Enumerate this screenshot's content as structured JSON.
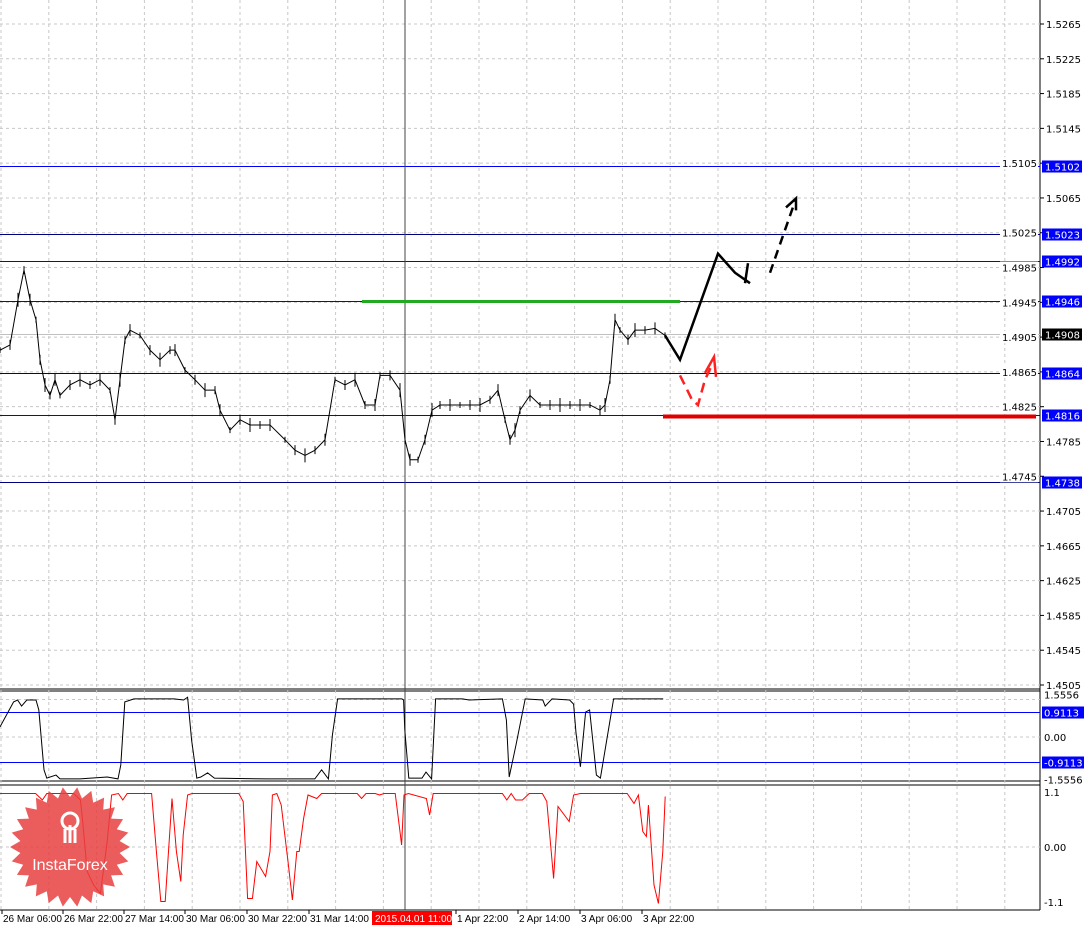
{
  "chart_data": [
    {
      "type": "line",
      "panel": "price",
      "ylim": [
        1.448,
        1.529
      ],
      "y_ticks": [
        "1.5265",
        "1.5225",
        "1.5185",
        "1.5145",
        "1.5105",
        "1.5065",
        "1.5025",
        "1.4985",
        "1.4945",
        "1.4905",
        "1.4865",
        "1.4825",
        "1.4785",
        "1.4745",
        "1.4705",
        "1.4665",
        "1.4625",
        "1.4585",
        "1.4545",
        "1.4505"
      ],
      "grid": true,
      "series": [
        {
          "values": [
            [
              0,
              1.489
            ],
            [
              2.5,
              1.4896
            ],
            [
              4.5,
              1.4948
            ],
            [
              6,
              1.4982
            ],
            [
              7.5,
              1.4948
            ],
            [
              9,
              1.4925
            ],
            [
              10,
              1.4879
            ],
            [
              11.25,
              1.485
            ],
            [
              12.5,
              1.4838
            ],
            [
              13.75,
              1.4856
            ],
            [
              15,
              1.4838
            ],
            [
              17.5,
              1.485
            ],
            [
              20,
              1.4856
            ],
            [
              22.5,
              1.485
            ],
            [
              25,
              1.4856
            ],
            [
              27.5,
              1.4844
            ],
            [
              28.75,
              1.481
            ],
            [
              30,
              1.4856
            ],
            [
              31.25,
              1.4902
            ],
            [
              32.5,
              1.4913
            ],
            [
              35,
              1.4907
            ],
            [
              37.5,
              1.489
            ],
            [
              40,
              1.4879
            ],
            [
              42.5,
              1.489
            ],
            [
              43.75,
              1.489
            ],
            [
              46.25,
              1.4867
            ],
            [
              48.75,
              1.4856
            ],
            [
              51.25,
              1.4844
            ],
            [
              53.75,
              1.4844
            ],
            [
              55,
              1.4821
            ],
            [
              57.5,
              1.4798
            ],
            [
              60,
              1.481
            ],
            [
              62.5,
              1.4804
            ],
            [
              65,
              1.4804
            ],
            [
              67.5,
              1.4804
            ],
            [
              71.25,
              1.4787
            ],
            [
              73.75,
              1.4775
            ],
            [
              76.25,
              1.4769
            ],
            [
              78.75,
              1.4775
            ],
            [
              81.25,
              1.4787
            ],
            [
              83.75,
              1.4856
            ],
            [
              86.25,
              1.485
            ],
            [
              88.75,
              1.4856
            ],
            [
              91.25,
              1.4827
            ],
            [
              93.75,
              1.4827
            ],
            [
              95,
              1.4861
            ],
            [
              97.5,
              1.4861
            ],
            [
              100,
              1.4844
            ],
            [
              101.25,
              1.4787
            ],
            [
              102.5,
              1.4764
            ],
            [
              104.5,
              1.4764
            ],
            [
              106.25,
              1.4787
            ],
            [
              108,
              1.4821
            ],
            [
              110,
              1.4827
            ],
            [
              112.5,
              1.4827
            ],
            [
              115,
              1.4827
            ],
            [
              117.5,
              1.4827
            ],
            [
              120,
              1.4827
            ],
            [
              122.5,
              1.4833
            ],
            [
              124.5,
              1.4844
            ],
            [
              126.25,
              1.481
            ],
            [
              127.5,
              1.4787
            ],
            [
              128.75,
              1.4798
            ],
            [
              130,
              1.4821
            ],
            [
              132.5,
              1.4838
            ],
            [
              135,
              1.4827
            ],
            [
              137.5,
              1.4827
            ],
            [
              140,
              1.4827
            ],
            [
              142.5,
              1.4827
            ],
            [
              145,
              1.4827
            ],
            [
              147.5,
              1.4827
            ],
            [
              150,
              1.4821
            ],
            [
              151.25,
              1.4827
            ],
            [
              152.5,
              1.4856
            ],
            [
              153.75,
              1.4925
            ],
            [
              155,
              1.4913
            ],
            [
              157,
              1.4902
            ],
            [
              158.75,
              1.4913
            ],
            [
              161.25,
              1.4913
            ],
            [
              163.75,
              1.4915
            ],
            [
              166.25,
              1.4907
            ]
          ],
          "color": "#000000"
        }
      ],
      "levels": [
        {
          "price": 1.5102,
          "label": "1.5102",
          "color": "#0000ff",
          "label_bg": "#0000ff"
        },
        {
          "price": 1.5023,
          "label": "1.5023",
          "color": "#000080",
          "label_bg": "#0000ff"
        },
        {
          "price": 1.4992,
          "label": "1.4992",
          "color": "#0000ff",
          "label_bg": "#0000ff"
        },
        {
          "price": 1.4946,
          "label": "1.4946",
          "color": "#0000ff",
          "label_bg": "#0000ff"
        },
        {
          "price": 1.4908,
          "label": "1.4908",
          "color": "#c0c0c0",
          "label_bg": "#000000"
        },
        {
          "price": 1.4864,
          "label": "1.4864",
          "color": "#000080",
          "label_bg": "#0000ff"
        },
        {
          "price": 1.4816,
          "label": "1.4816",
          "color": "#0000ff",
          "label_bg": "#0000ff"
        },
        {
          "price": 1.4738,
          "label": "1.4738",
          "color": "#000080",
          "label_bg": "#0000ff"
        }
      ],
      "annotations": {
        "resistance_segment": {
          "price": 1.4946,
          "from_bar": 90.5,
          "to_bar": 170,
          "color": "#22aa22"
        },
        "support_segment": {
          "price": 1.4816,
          "from_bar": 165.75,
          "to_bar": 259,
          "color": "#e00000"
        },
        "bull_path": [
          [
            166.25,
            1.4907
          ],
          [
            170,
            1.4879
          ],
          [
            179.5,
            1.5001
          ],
          [
            183.75,
            1.4979
          ],
          [
            187.5,
            1.4967
          ]
        ],
        "bull_hook": [
          [
            186.25,
            1.4967
          ],
          [
            187,
            1.499
          ]
        ],
        "bull_dashed": [
          [
            192.5,
            1.4979
          ],
          [
            198.75,
            1.5061
          ]
        ],
        "bear_dashed": [
          [
            170,
            1.4861
          ],
          [
            173,
            1.4833
          ],
          [
            174.5,
            1.4827
          ],
          [
            176.25,
            1.4856
          ],
          [
            178,
            1.4873
          ]
        ],
        "accent_colors": {
          "bull": "#000000",
          "bear": "#ff2020"
        }
      }
    },
    {
      "type": "line",
      "panel": "indicator-1",
      "ylim": [
        -1.5556,
        1.5556
      ],
      "y_ticks": [
        "1.5556",
        "0.00",
        "-1.5556"
      ],
      "levels": [
        {
          "value": 0.9113,
          "label": "0.9113"
        },
        {
          "value": -0.9113,
          "label": "-0.9113"
        }
      ],
      "series": [
        {
          "color": "#000000",
          "values": [
            [
              0,
              0.37
            ],
            [
              3.4,
              1.28
            ],
            [
              4.4,
              1.35
            ],
            [
              5.4,
              1.13
            ],
            [
              6.7,
              1.35
            ],
            [
              9,
              1.35
            ],
            [
              9.7,
              0.99
            ],
            [
              11,
              -1.2
            ],
            [
              11.7,
              -1.5
            ],
            [
              14,
              -1.39
            ],
            [
              15,
              -1.53
            ],
            [
              20,
              -1.53
            ],
            [
              26.8,
              -1.46
            ],
            [
              29.5,
              -1.53
            ],
            [
              30.2,
              -1.02
            ],
            [
              31.2,
              1.28
            ],
            [
              33.5,
              1.39
            ],
            [
              43.5,
              1.39
            ],
            [
              45.9,
              1.35
            ],
            [
              46.9,
              1.45
            ],
            [
              47.9,
              -0.11
            ],
            [
              49.2,
              -1.5
            ],
            [
              50.2,
              -1.46
            ],
            [
              51.9,
              -1.31
            ],
            [
              53.6,
              -1.5
            ],
            [
              67,
              -1.53
            ],
            [
              78.7,
              -1.53
            ],
            [
              80.4,
              -1.2
            ],
            [
              82.1,
              -1.53
            ],
            [
              83.1,
              0.07
            ],
            [
              84.4,
              1.39
            ],
            [
              100.5,
              1.39
            ],
            [
              100.9,
              1.35
            ],
            [
              101.2,
              0.26
            ],
            [
              102.2,
              -1.5
            ],
            [
              105.5,
              -1.5
            ],
            [
              106.5,
              -1.28
            ],
            [
              107.9,
              -1.53
            ],
            [
              108.9,
              1.39
            ],
            [
              115.6,
              1.39
            ],
            [
              117.3,
              1.35
            ],
            [
              125.6,
              1.39
            ],
            [
              126.6,
              0.62
            ],
            [
              127.3,
              -1.46
            ],
            [
              129,
              -0.29
            ],
            [
              131.3,
              1.39
            ],
            [
              135.7,
              1.35
            ],
            [
              136.3,
              1.13
            ],
            [
              138,
              1.39
            ],
            [
              142.4,
              1.35
            ],
            [
              143.4,
              1.2
            ],
            [
              144,
              0.15
            ],
            [
              145.1,
              -1.09
            ],
            [
              146.4,
              0.91
            ],
            [
              147.4,
              0.99
            ],
            [
              149.1,
              -1.39
            ],
            [
              150.1,
              -1.5
            ],
            [
              153.4,
              1.39
            ],
            [
              159.1,
              1.39
            ],
            [
              160.8,
              1.39
            ],
            [
              165.8,
              1.39
            ]
          ]
        }
      ]
    },
    {
      "type": "line",
      "panel": "indicator-2",
      "ylim": [
        -1.1,
        1.1
      ],
      "y_ticks": [
        "1.1",
        "0.00",
        "-1.1"
      ],
      "series": [
        {
          "color": "#ff0000",
          "values": [
            [
              0,
              1.07
            ],
            [
              8.9,
              1.07
            ],
            [
              10.6,
              0.94
            ],
            [
              11.7,
              1.07
            ],
            [
              18.4,
              1.07
            ],
            [
              20.1,
              0.94
            ],
            [
              20.6,
              0.57
            ],
            [
              21.8,
              -0.49
            ],
            [
              23.4,
              -0.76
            ],
            [
              25.1,
              -0.93
            ],
            [
              26.8,
              0.11
            ],
            [
              27.9,
              1.04
            ],
            [
              29.6,
              1.07
            ],
            [
              30.7,
              0.94
            ],
            [
              31.8,
              1.07
            ],
            [
              37.9,
              1.07
            ],
            [
              39.1,
              -0.09
            ],
            [
              40.2,
              -1.09
            ],
            [
              41.3,
              -1.09
            ],
            [
              43,
              0.97
            ],
            [
              44.1,
              -0.09
            ],
            [
              45.2,
              -0.69
            ],
            [
              45.8,
              0.24
            ],
            [
              46.9,
              1.04
            ],
            [
              48,
              1.07
            ],
            [
              59.7,
              1.07
            ],
            [
              60.8,
              0.91
            ],
            [
              61.9,
              -1.03
            ],
            [
              63.1,
              -1.03
            ],
            [
              64.2,
              -0.29
            ],
            [
              66.4,
              -0.59
            ],
            [
              67.5,
              -0.09
            ],
            [
              68.1,
              1.04
            ],
            [
              69.2,
              1.07
            ],
            [
              70.3,
              0.84
            ],
            [
              72,
              -0.29
            ],
            [
              73.1,
              -1.06
            ],
            [
              74.2,
              -0.09
            ],
            [
              74.8,
              -0.09
            ],
            [
              75.9,
              0.57
            ],
            [
              77,
              1.04
            ],
            [
              79.2,
              0.97
            ],
            [
              80.4,
              1.07
            ],
            [
              89.3,
              1.07
            ],
            [
              90.4,
              0.97
            ],
            [
              91.5,
              1.07
            ],
            [
              93.8,
              1.07
            ],
            [
              94.9,
              1.04
            ],
            [
              96,
              1.07
            ],
            [
              98.8,
              1.07
            ],
            [
              99.9,
              0.37
            ],
            [
              100.4,
              0.04
            ],
            [
              101,
              1.04
            ],
            [
              102.1,
              1.07
            ],
            [
              106.6,
              0.97
            ],
            [
              107.4,
              0.64
            ],
            [
              108.3,
              1.07
            ],
            [
              125.6,
              1.07
            ],
            [
              126.7,
              0.94
            ],
            [
              127.8,
              1.07
            ],
            [
              128.9,
              0.94
            ],
            [
              130.6,
              0.94
            ],
            [
              132.3,
              1.07
            ],
            [
              135.6,
              1.07
            ],
            [
              136.7,
              0.91
            ],
            [
              138.4,
              -0.63
            ],
            [
              139.5,
              0.81
            ],
            [
              142.3,
              0.51
            ],
            [
              143.4,
              1.04
            ],
            [
              145.1,
              1.07
            ],
            [
              156.8,
              1.07
            ],
            [
              158.5,
              0.87
            ],
            [
              159.6,
              1.04
            ],
            [
              160.7,
              0.31
            ],
            [
              161.6,
              0.21
            ],
            [
              162.1,
              0.84
            ],
            [
              163.5,
              -0.76
            ],
            [
              164.6,
              -1.13
            ],
            [
              165.7,
              -0.09
            ],
            [
              166.3,
              1.01
            ]
          ]
        }
      ]
    }
  ],
  "time_axis": {
    "labels": [
      "26 Mar 06:00",
      "26 Mar 22:00",
      "27 Mar 14:00",
      "30 Mar 06:00",
      "30 Mar 22:00",
      "31 Mar 14:00",
      "1 Apr 22:00",
      "2 Apr 14:00",
      "3 Apr 06:00",
      "3 Apr 22:00"
    ],
    "crosshair_label": "2015.04.01 11:00",
    "crosshair_bar": 101.25
  },
  "logo": {
    "text": "InstaForex",
    "color": "#e84040"
  }
}
